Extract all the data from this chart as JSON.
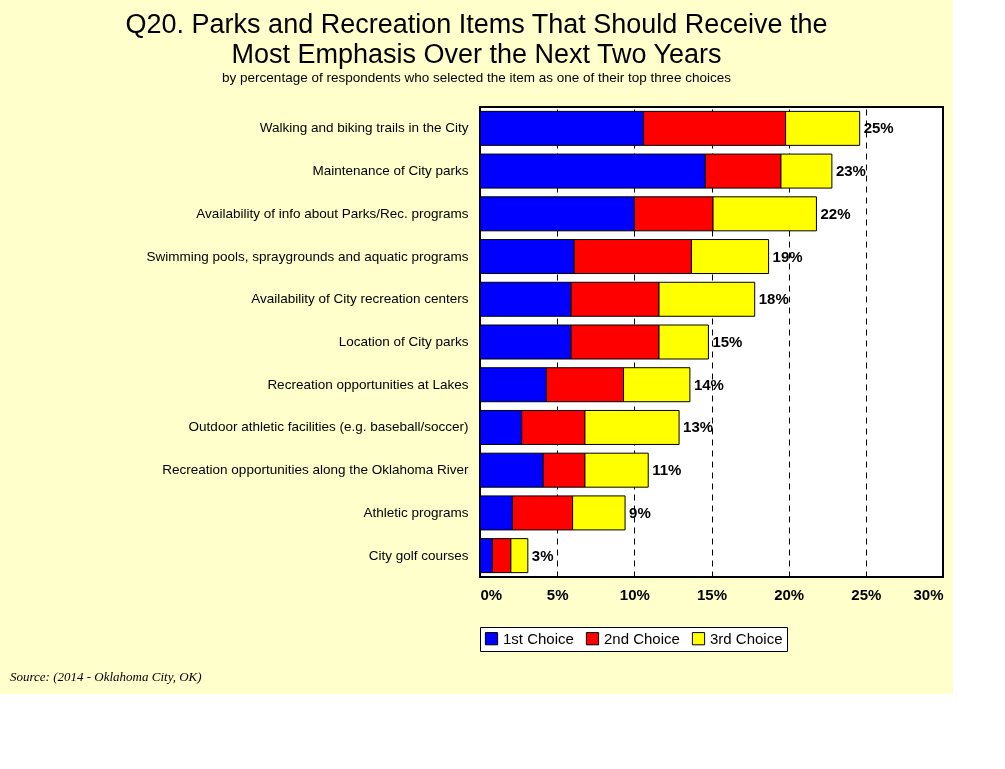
{
  "chart_data": {
    "type": "bar",
    "orientation": "horizontal",
    "stacked": true,
    "title": "Q20. Parks and Recreation Items That Should Receive the Most Emphasis Over the Next Two Years",
    "subtitle": "by percentage of respondents who selected the item as one of their top three choices",
    "categories": [
      "Walking and biking trails in the City",
      "Maintenance of City parks",
      "Availability of info about Parks/Rec. programs",
      "Swimming pools, spraygrounds and aquatic programs",
      "Availability of City recreation centers",
      "Location of City parks",
      "Recreation opportunities at Lakes",
      "Outdoor athletic facilities (e.g. baseball/soccer)",
      "Recreation opportunities along the Oklahoma River",
      "Athletic programs",
      "City golf courses"
    ],
    "series": [
      {
        "name": "1st Choice",
        "color": "#0000ff",
        "values": [
          10.6,
          14.6,
          10.0,
          6.1,
          5.9,
          5.9,
          4.3,
          2.7,
          4.1,
          2.1,
          0.8
        ]
      },
      {
        "name": "2nd Choice",
        "color": "#ff0000",
        "values": [
          9.2,
          4.9,
          5.1,
          7.6,
          5.7,
          5.7,
          5.0,
          4.1,
          2.7,
          3.9,
          1.2
        ]
      },
      {
        "name": "3rd Choice",
        "color": "#ffff00",
        "values": [
          4.8,
          3.3,
          6.7,
          5.0,
          6.2,
          3.2,
          4.3,
          6.1,
          4.1,
          3.4,
          1.1
        ]
      }
    ],
    "totals": [
      "25%",
      "23%",
      "22%",
      "19%",
      "18%",
      "15%",
      "14%",
      "13%",
      "11%",
      "9%",
      "3%"
    ],
    "xlim": [
      0,
      30
    ],
    "xticks": [
      {
        "value": 0,
        "label": "0%"
      },
      {
        "value": 5,
        "label": "5%"
      },
      {
        "value": 10,
        "label": "10%"
      },
      {
        "value": 15,
        "label": "15%"
      },
      {
        "value": 20,
        "label": "20%"
      },
      {
        "value": 25,
        "label": "25%"
      },
      {
        "value": 30,
        "label": "30%"
      }
    ],
    "grid": "x",
    "legend": "bottom",
    "annotations": [
      "Source: (2014 - Oklahoma City, OK)"
    ]
  }
}
